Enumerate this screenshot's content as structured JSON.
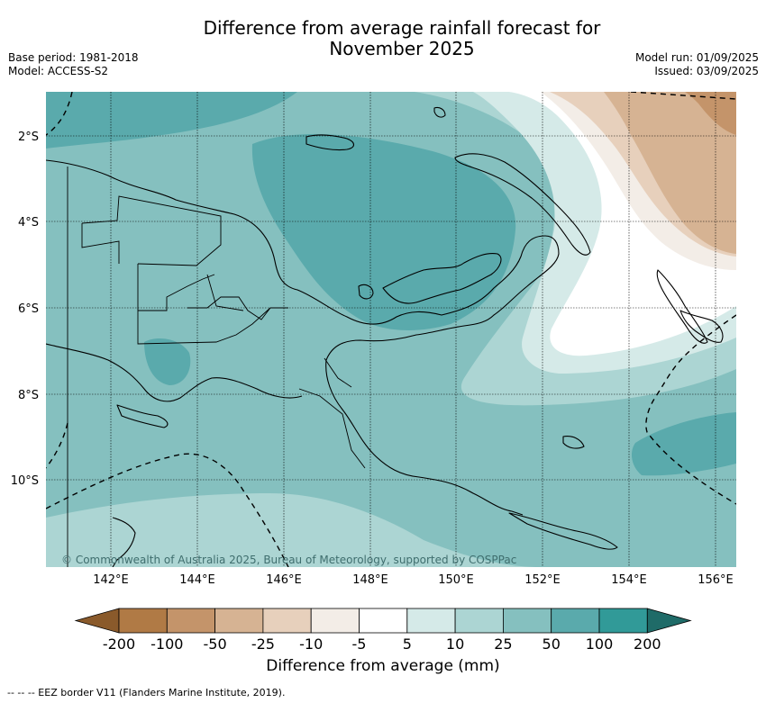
{
  "title_line1": "Difference from average rainfall forecast for",
  "title_line2": "November 2025",
  "meta_left": {
    "base_period": "Base period: 1981-2018",
    "model": "Model: ACCESS-S2"
  },
  "meta_right": {
    "model_run": "Model run: 01/09/2025",
    "issued": "Issued: 03/09/2025"
  },
  "map": {
    "lat_labels": [
      "2°S",
      "4°S",
      "6°S",
      "8°S",
      "10°S"
    ],
    "lon_labels": [
      "142°E",
      "144°E",
      "146°E",
      "148°E",
      "150°E",
      "152°E",
      "154°E",
      "156°E"
    ],
    "copyright": "© Commonwealth of Australia 2025, Bureau of Meteorology, supported by COSPPac"
  },
  "colorbar": {
    "title": "Difference from average (mm)",
    "tick_labels": [
      "-200",
      "-100",
      "-50",
      "-25",
      "-10",
      "-5",
      "5",
      "10",
      "25",
      "50",
      "100",
      "200"
    ],
    "colors": [
      "#8a5a2b",
      "#b07a45",
      "#c4946a",
      "#d6b393",
      "#e7d0bc",
      "#f3ede7",
      "#ffffff",
      "#d5eae8",
      "#acd5d3",
      "#85c0bf",
      "#5aaaac",
      "#319a98",
      "#1f6b68"
    ]
  },
  "footnote": "--  --  -- EEZ border V11 (Flanders Marine Institute, 2019)."
}
